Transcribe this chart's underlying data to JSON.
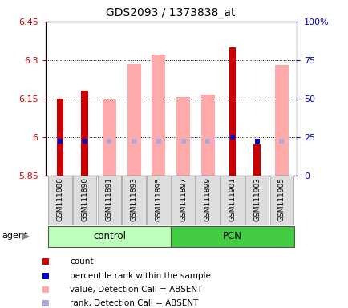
{
  "title": "GDS2093 / 1373838_at",
  "samples": [
    "GSM111888",
    "GSM111890",
    "GSM111891",
    "GSM111893",
    "GSM111895",
    "GSM111897",
    "GSM111899",
    "GSM111901",
    "GSM111903",
    "GSM111905"
  ],
  "ylim_left": [
    5.85,
    6.45
  ],
  "ylim_right": [
    0,
    100
  ],
  "yticks_left": [
    5.85,
    6.0,
    6.15,
    6.3,
    6.45
  ],
  "yticks_right": [
    0,
    25,
    50,
    75,
    100
  ],
  "ytick_labels_left": [
    "5.85",
    "6",
    "6.15",
    "6.3",
    "6.45"
  ],
  "ytick_labels_right": [
    "0",
    "25",
    "50",
    "75",
    "100%"
  ],
  "red_bar_values": [
    6.15,
    6.18,
    null,
    null,
    null,
    null,
    null,
    6.35,
    5.97,
    null
  ],
  "pink_bar_values": [
    null,
    null,
    6.145,
    6.285,
    6.32,
    6.155,
    6.165,
    null,
    null,
    6.28
  ],
  "blue_marker_left": [
    5.985,
    5.985,
    null,
    null,
    null,
    null,
    null,
    6.0,
    5.985,
    null
  ],
  "light_blue_marker_left": [
    null,
    null,
    5.983,
    5.983,
    5.983,
    5.983,
    5.983,
    null,
    null,
    5.983
  ],
  "red_color": "#cc0000",
  "pink_color": "#ffaaaa",
  "blue_color": "#0000cc",
  "light_blue_color": "#aaaadd",
  "control_color": "#bbffbb",
  "pcn_color": "#44cc44",
  "legend_items": [
    "count",
    "percentile rank within the sample",
    "value, Detection Call = ABSENT",
    "rank, Detection Call = ABSENT"
  ],
  "legend_colors": [
    "#cc0000",
    "#0000cc",
    "#ffaaaa",
    "#aaaadd"
  ]
}
